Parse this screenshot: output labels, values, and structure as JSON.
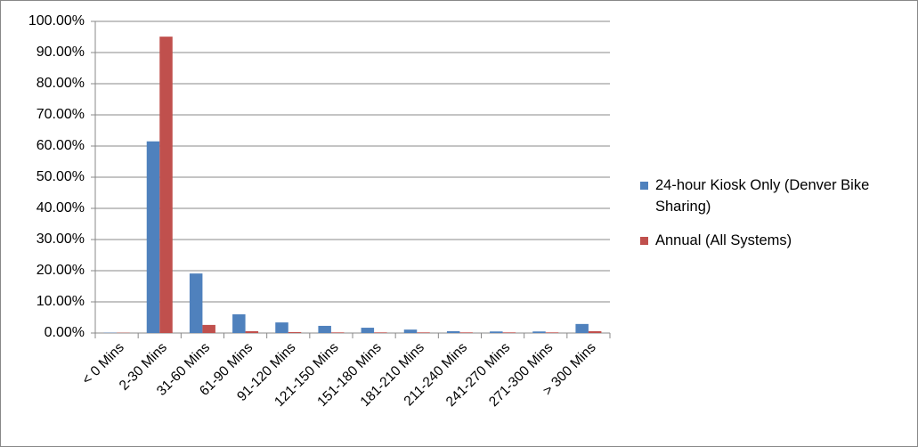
{
  "chart_data": {
    "type": "bar",
    "categories": [
      "< 0 Mins",
      "2-30 Mins",
      "31-60 Mins",
      "61-90 Mins",
      "91-120 Mins",
      "121-150 Mins",
      "151-180 Mins",
      "181-210 Mins",
      "211-240 Mins",
      "241-270 Mins",
      "271-300 Mins",
      "> 300 Mins"
    ],
    "series": [
      {
        "name": "24-hour Kiosk Only (Denver Bike Sharing)",
        "color": "#4f81bd",
        "values": [
          0.1,
          61.5,
          19.1,
          6.0,
          3.4,
          2.3,
          1.7,
          1.1,
          0.6,
          0.5,
          0.5,
          2.9
        ]
      },
      {
        "name": "Annual (All Systems)",
        "color": "#c0504d",
        "values": [
          0.1,
          95.1,
          2.6,
          0.6,
          0.3,
          0.2,
          0.2,
          0.2,
          0.2,
          0.2,
          0.2,
          0.6
        ]
      }
    ],
    "ylim": [
      0,
      100
    ],
    "yticks": [
      {
        "value": 0,
        "label": "0.00%"
      },
      {
        "value": 10,
        "label": "10.00%"
      },
      {
        "value": 20,
        "label": "20.00%"
      },
      {
        "value": 30,
        "label": "30.00%"
      },
      {
        "value": 40,
        "label": "40.00%"
      },
      {
        "value": 50,
        "label": "50.00%"
      },
      {
        "value": 60,
        "label": "60.00%"
      },
      {
        "value": 70,
        "label": "70.00%"
      },
      {
        "value": 80,
        "label": "80.00%"
      },
      {
        "value": 90,
        "label": "90.00%"
      },
      {
        "value": 100,
        "label": "100.00%"
      }
    ],
    "grid": true,
    "legend": "right"
  }
}
